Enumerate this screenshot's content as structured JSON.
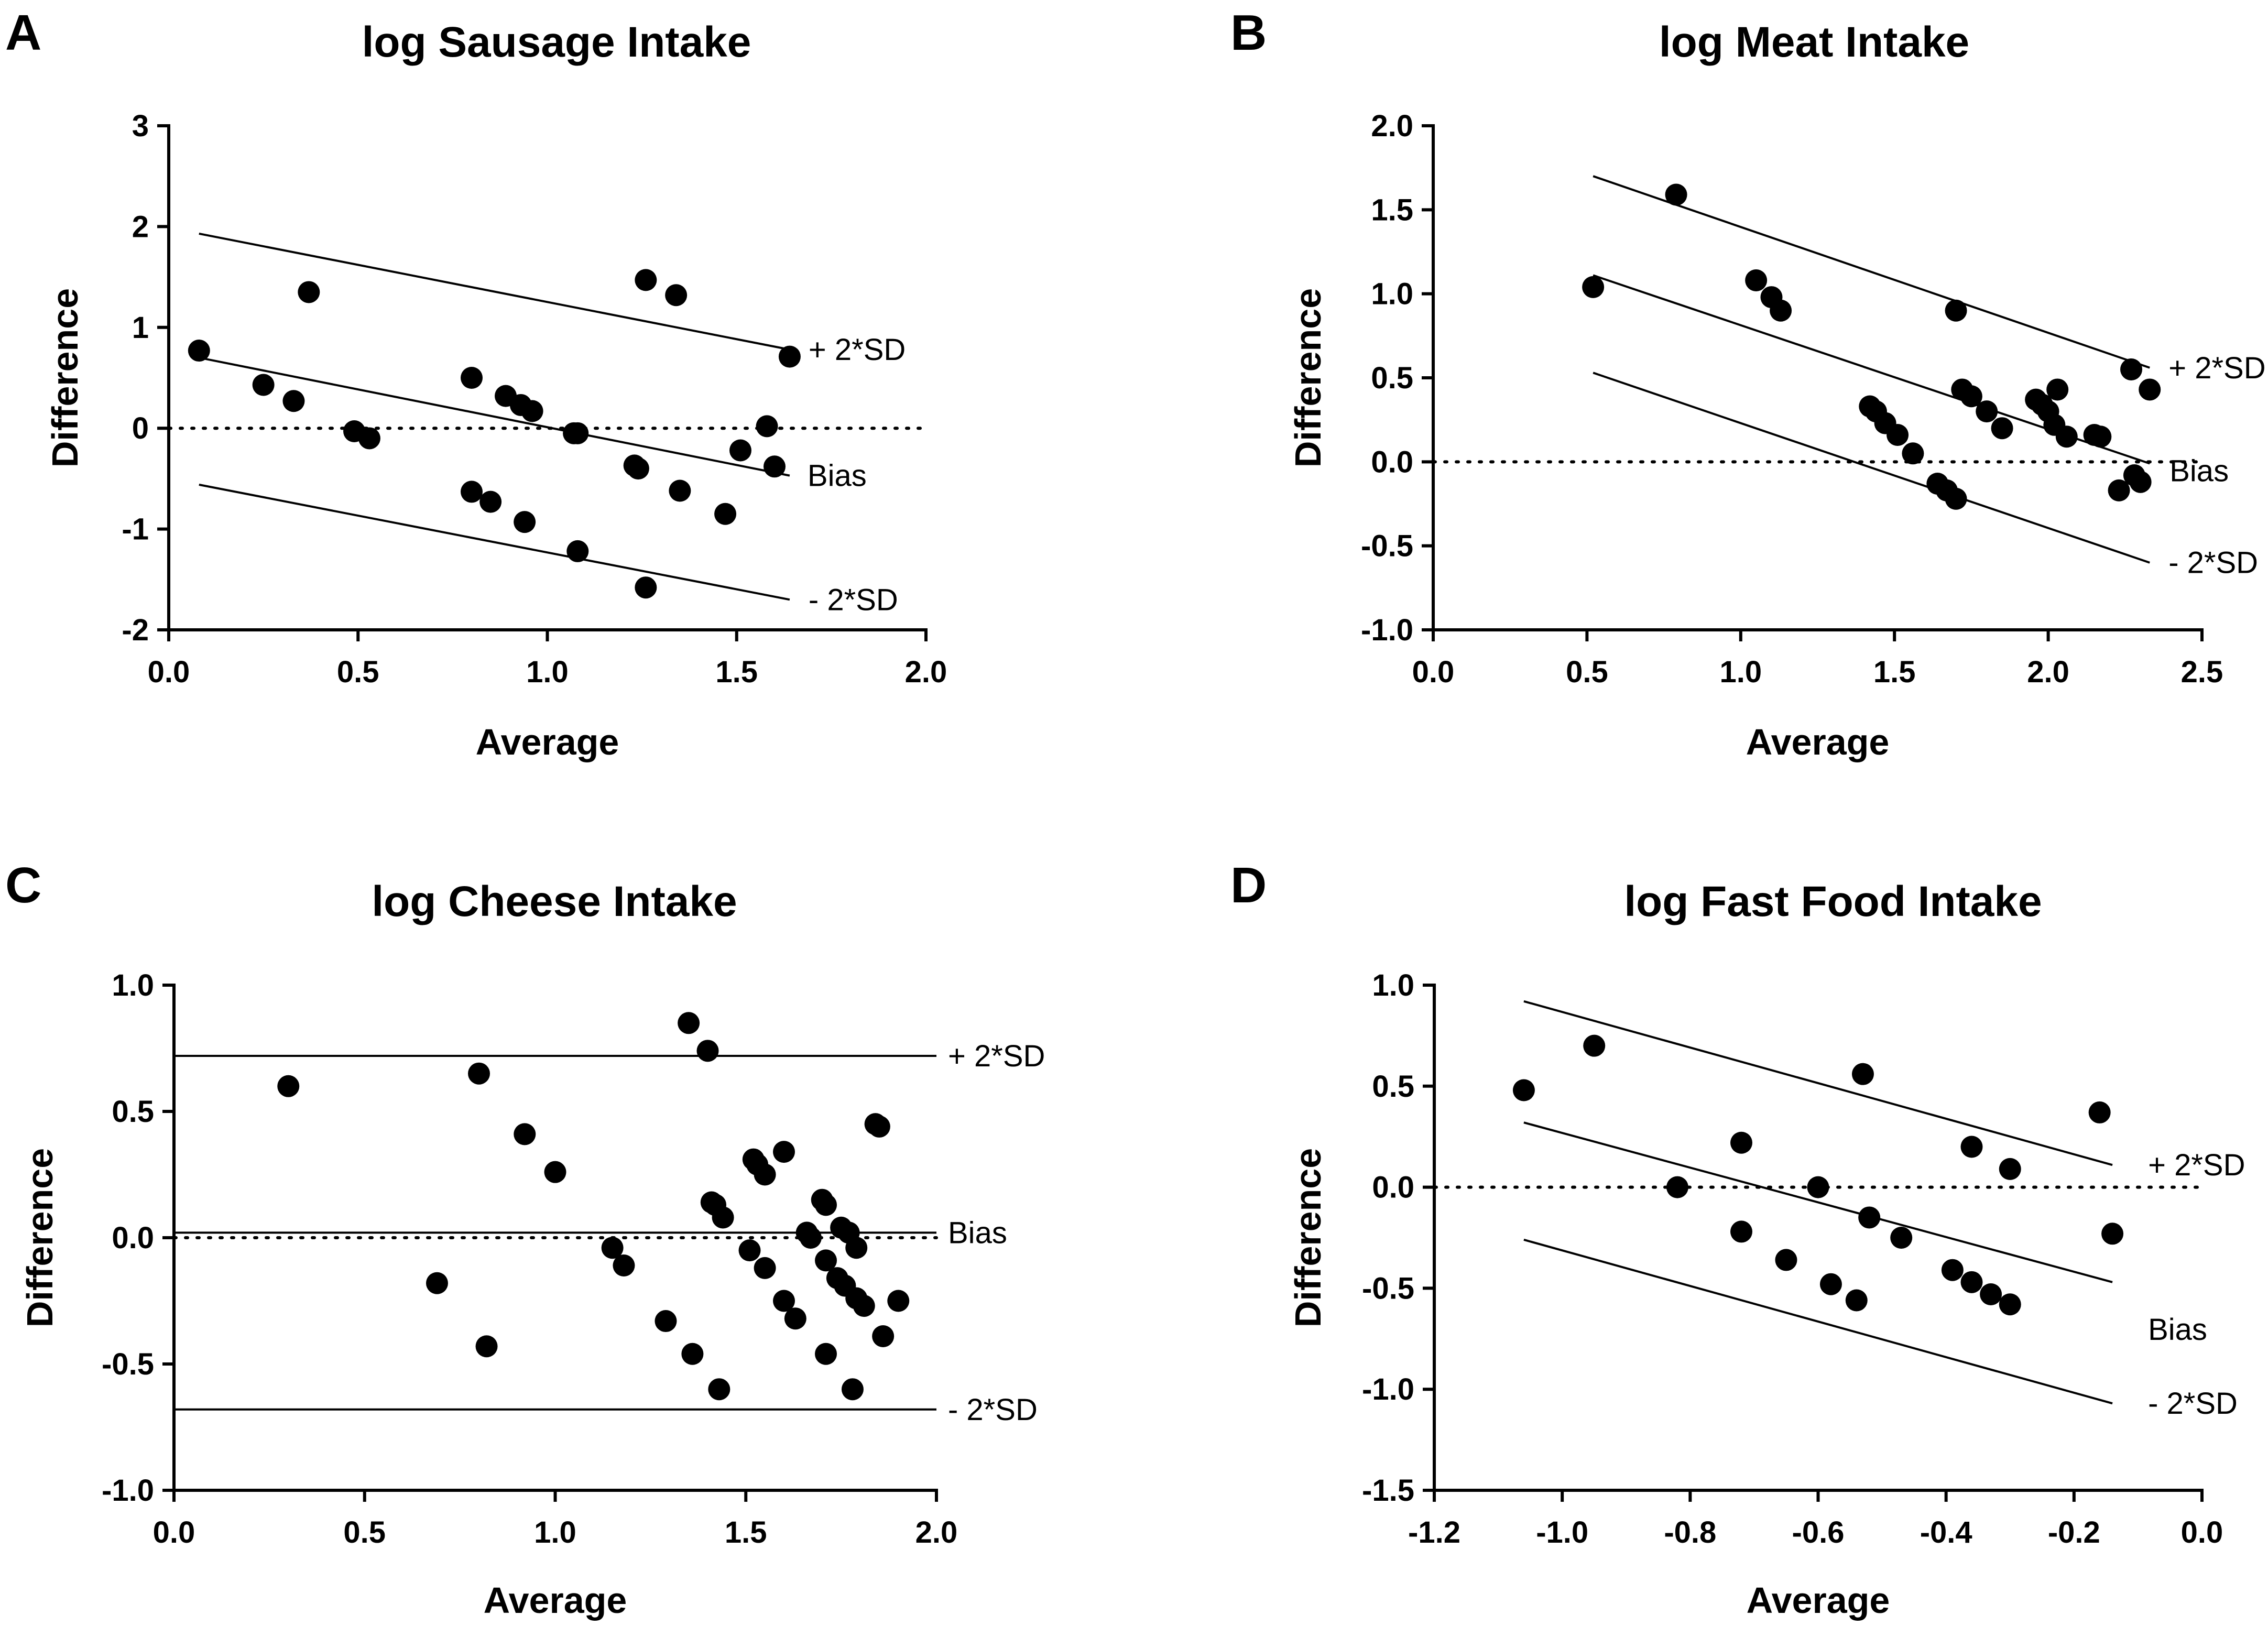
{
  "chart_data": [
    {
      "panel": "A",
      "type": "scatter",
      "title": "log Sausage Intake",
      "xlabel": "Average",
      "ylabel": "Difference",
      "xlim": [
        0,
        2
      ],
      "ylim": [
        -2,
        3
      ],
      "xticks": [
        "0.0",
        "0.5",
        "1.0",
        "1.5",
        "2.0"
      ],
      "yticks": [
        "-2",
        "-1",
        "0",
        "1",
        "2",
        "3"
      ],
      "points": [
        [
          0.08,
          0.77
        ],
        [
          0.25,
          0.43
        ],
        [
          0.33,
          0.27
        ],
        [
          0.37,
          1.35
        ],
        [
          0.49,
          -0.03
        ],
        [
          0.53,
          -0.1
        ],
        [
          0.8,
          0.5
        ],
        [
          0.8,
          -0.63
        ],
        [
          0.85,
          -0.73
        ],
        [
          0.89,
          0.32
        ],
        [
          0.93,
          0.23
        ],
        [
          0.94,
          -0.93
        ],
        [
          0.96,
          0.17
        ],
        [
          1.07,
          -0.05
        ],
        [
          1.08,
          -0.05
        ],
        [
          1.08,
          -1.22
        ],
        [
          1.23,
          -0.37
        ],
        [
          1.24,
          -0.4
        ],
        [
          1.26,
          1.47
        ],
        [
          1.26,
          -1.58
        ],
        [
          1.34,
          1.32
        ],
        [
          1.35,
          -0.62
        ],
        [
          1.47,
          -0.85
        ],
        [
          1.51,
          -0.22
        ],
        [
          1.58,
          0.02
        ],
        [
          1.6,
          -0.38
        ],
        [
          1.64,
          0.71
        ]
      ],
      "lines": [
        {
          "label": "+ 2*SD",
          "x": [
            0.08,
            1.64
          ],
          "y": [
            1.93,
            0.78
          ]
        },
        {
          "label": "Bias",
          "x": [
            0.08,
            1.64
          ],
          "y": [
            0.7,
            -0.47
          ]
        },
        {
          "label": "- 2*SD",
          "x": [
            0.08,
            1.64
          ],
          "y": [
            -0.56,
            -1.7
          ]
        }
      ],
      "zero_line": true
    },
    {
      "panel": "B",
      "type": "scatter",
      "title": "log Meat Intake",
      "xlabel": "Average",
      "ylabel": "Difference",
      "xlim": [
        0,
        2.5
      ],
      "ylim": [
        -1,
        2
      ],
      "xticks": [
        "0.0",
        "0.5",
        "1.0",
        "1.5",
        "2.0",
        "2.5"
      ],
      "yticks": [
        "-1.0",
        "-0.5",
        "0.0",
        "0.5",
        "1.0",
        "1.5",
        "2.0"
      ],
      "points": [
        [
          0.52,
          1.04
        ],
        [
          0.79,
          1.59
        ],
        [
          1.05,
          1.08
        ],
        [
          1.1,
          0.98
        ],
        [
          1.13,
          0.9
        ],
        [
          1.42,
          0.33
        ],
        [
          1.44,
          0.3
        ],
        [
          1.47,
          0.23
        ],
        [
          1.51,
          0.16
        ],
        [
          1.56,
          0.05
        ],
        [
          1.64,
          -0.13
        ],
        [
          1.67,
          -0.17
        ],
        [
          1.7,
          -0.22
        ],
        [
          1.7,
          0.9
        ],
        [
          1.72,
          0.43
        ],
        [
          1.75,
          0.39
        ],
        [
          1.8,
          0.3
        ],
        [
          1.85,
          0.2
        ],
        [
          1.96,
          0.37
        ],
        [
          1.98,
          0.34
        ],
        [
          2.0,
          0.3
        ],
        [
          2.02,
          0.22
        ],
        [
          2.03,
          0.43
        ],
        [
          2.06,
          0.15
        ],
        [
          2.15,
          0.16
        ],
        [
          2.17,
          0.15
        ],
        [
          2.23,
          -0.17
        ],
        [
          2.27,
          0.55
        ],
        [
          2.28,
          -0.08
        ],
        [
          2.3,
          -0.12
        ],
        [
          2.33,
          0.43
        ]
      ],
      "lines": [
        {
          "label": "+ 2*SD",
          "x": [
            0.52,
            2.33
          ],
          "y": [
            1.7,
            0.56
          ]
        },
        {
          "label": "Bias",
          "x": [
            0.52,
            2.33
          ],
          "y": [
            1.11,
            -0.01
          ]
        },
        {
          "label": "- 2*SD",
          "x": [
            0.52,
            2.33
          ],
          "y": [
            0.53,
            -0.6
          ]
        }
      ],
      "zero_line": true
    },
    {
      "panel": "C",
      "type": "scatter",
      "title": "log Cheese Intake",
      "xlabel": "Average",
      "ylabel": "Difference",
      "xlim": [
        0,
        2
      ],
      "ylim": [
        -1,
        1
      ],
      "xticks": [
        "0.0",
        "0.5",
        "1.0",
        "1.5",
        "2.0"
      ],
      "yticks": [
        "-1.0",
        "-0.5",
        "0.0",
        "0.5",
        "1.0"
      ],
      "points": [
        [
          0.3,
          0.6
        ],
        [
          0.69,
          -0.18
        ],
        [
          0.8,
          0.65
        ],
        [
          0.82,
          -0.43
        ],
        [
          0.92,
          0.41
        ],
        [
          1.0,
          0.26
        ],
        [
          1.15,
          -0.04
        ],
        [
          1.18,
          -0.11
        ],
        [
          1.29,
          -0.33
        ],
        [
          1.35,
          0.85
        ],
        [
          1.36,
          -0.46
        ],
        [
          1.4,
          0.74
        ],
        [
          1.41,
          0.14
        ],
        [
          1.42,
          0.13
        ],
        [
          1.43,
          -0.6
        ],
        [
          1.44,
          0.08
        ],
        [
          1.51,
          -0.05
        ],
        [
          1.52,
          0.31
        ],
        [
          1.53,
          0.29
        ],
        [
          1.55,
          -0.12
        ],
        [
          1.55,
          0.25
        ],
        [
          1.6,
          0.34
        ],
        [
          1.6,
          -0.25
        ],
        [
          1.63,
          -0.32
        ],
        [
          1.66,
          0.02
        ],
        [
          1.67,
          0.0
        ],
        [
          1.7,
          0.15
        ],
        [
          1.71,
          0.13
        ],
        [
          1.71,
          -0.09
        ],
        [
          1.71,
          -0.46
        ],
        [
          1.74,
          -0.16
        ],
        [
          1.75,
          0.04
        ],
        [
          1.76,
          -0.19
        ],
        [
          1.77,
          0.02
        ],
        [
          1.78,
          -0.6
        ],
        [
          1.79,
          -0.04
        ],
        [
          1.79,
          -0.24
        ],
        [
          1.81,
          -0.27
        ],
        [
          1.84,
          0.45
        ],
        [
          1.85,
          0.44
        ],
        [
          1.86,
          -0.39
        ],
        [
          1.9,
          -0.25
        ]
      ],
      "lines": [
        {
          "label": "+ 2*SD",
          "x": [
            0,
            2
          ],
          "y": [
            0.72,
            0.72
          ]
        },
        {
          "label": "Bias",
          "x": [
            0,
            2
          ],
          "y": [
            0.02,
            0.02
          ]
        },
        {
          "label": "- 2*SD",
          "x": [
            0,
            2
          ],
          "y": [
            -0.68,
            -0.68
          ]
        }
      ],
      "zero_line": true
    },
    {
      "panel": "D",
      "type": "scatter",
      "title": "log Fast Food Intake",
      "xlabel": "Average",
      "ylabel": "Difference",
      "xlim": [
        -1.2,
        0
      ],
      "ylim": [
        -1.5,
        1
      ],
      "xticks": [
        "-1.2",
        "-1.0",
        "-0.8",
        "-0.6",
        "-0.4",
        "-0.2",
        "0.0"
      ],
      "yticks": [
        "-1.5",
        "-1.0",
        "-0.5",
        "0.0",
        "0.5",
        "1.0"
      ],
      "points": [
        [
          -1.06,
          0.48
        ],
        [
          -0.95,
          0.7
        ],
        [
          -0.82,
          0.0
        ],
        [
          -0.72,
          0.22
        ],
        [
          -0.72,
          -0.22
        ],
        [
          -0.65,
          -0.36
        ],
        [
          -0.6,
          0.0
        ],
        [
          -0.58,
          -0.48
        ],
        [
          -0.54,
          -0.56
        ],
        [
          -0.53,
          0.56
        ],
        [
          -0.52,
          -0.15
        ],
        [
          -0.47,
          -0.25
        ],
        [
          -0.39,
          -0.41
        ],
        [
          -0.36,
          -0.47
        ],
        [
          -0.36,
          0.2
        ],
        [
          -0.33,
          -0.53
        ],
        [
          -0.3,
          -0.58
        ],
        [
          -0.3,
          0.09
        ],
        [
          -0.16,
          0.37
        ],
        [
          -0.14,
          -0.23
        ]
      ],
      "lines": [
        {
          "label": "+ 2*SD",
          "x": [
            -1.06,
            -0.14
          ],
          "y": [
            0.92,
            0.11
          ]
        },
        {
          "label": "Bias",
          "x": [
            -1.06,
            -0.14
          ],
          "y": [
            0.32,
            -0.47
          ]
        },
        {
          "label": "- 2*SD",
          "x": [
            -1.06,
            -0.14
          ],
          "y": [
            -0.26,
            -1.07
          ]
        }
      ],
      "zero_line": true
    }
  ]
}
